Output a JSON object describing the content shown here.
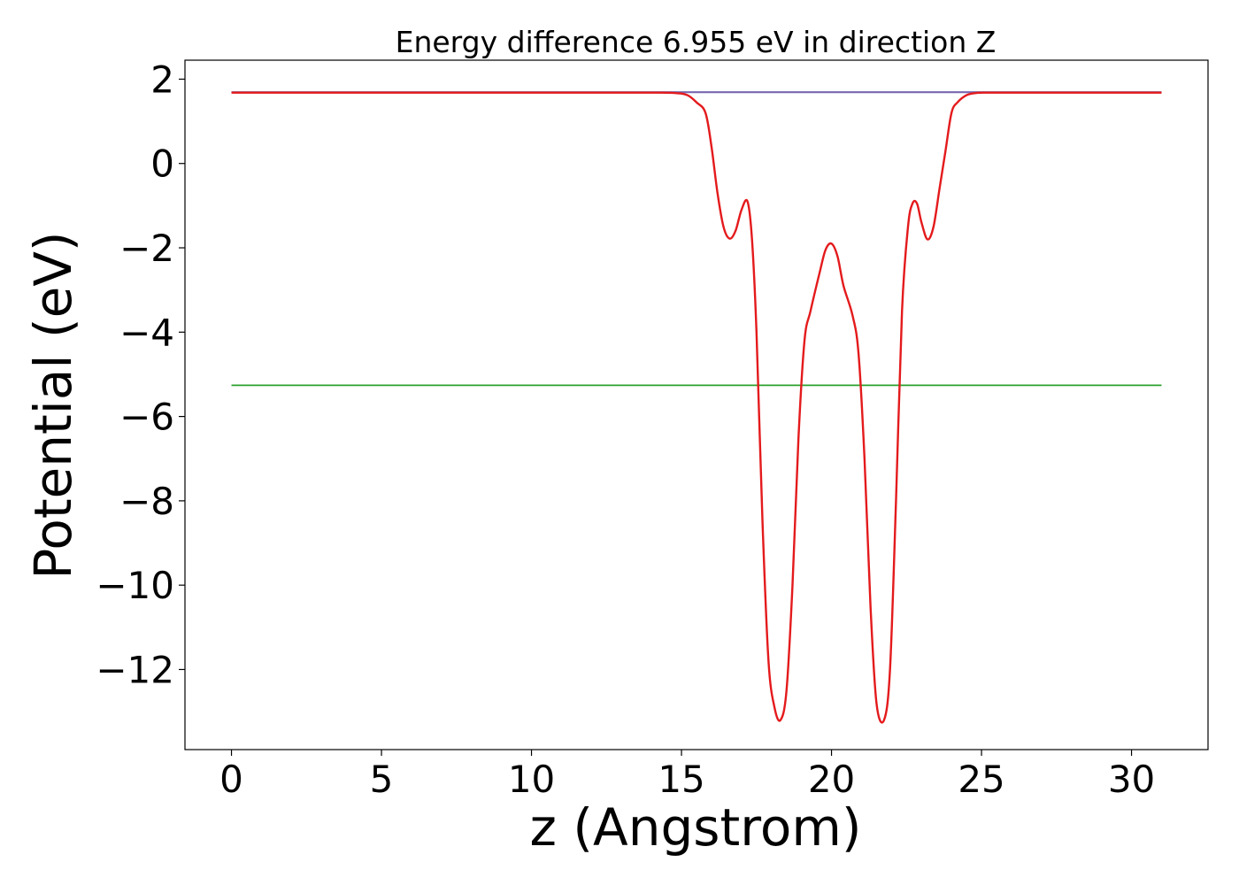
{
  "chart_data": {
    "type": "line",
    "title": "Energy difference 6.955 eV in direction Z",
    "xlabel": "z (Angstrom)",
    "ylabel": "Potential (eV)",
    "xlim": [
      -1.55,
      32.55
    ],
    "ylim": [
      -13.9,
      2.45
    ],
    "xticks": [
      0,
      5,
      10,
      15,
      20,
      25,
      30
    ],
    "yticks": [
      2,
      0,
      -2,
      -4,
      -6,
      -8,
      -10,
      -12
    ],
    "xtick_labels": [
      "0",
      "5",
      "10",
      "15",
      "20",
      "25",
      "30"
    ],
    "ytick_labels": [
      "2",
      "0",
      "−2",
      "−4",
      "−6",
      "−8",
      "−10",
      "−12"
    ],
    "grid": false,
    "legend": "none",
    "series": [
      {
        "color": "#1f77b4",
        "x": [
          0,
          31
        ],
        "y": [
          1.69,
          1.69
        ]
      },
      {
        "color": "#2ca02c",
        "x": [
          0,
          31
        ],
        "y": [
          -5.26,
          -5.26
        ]
      },
      {
        "color": "#8064b0",
        "x": [
          0,
          14.5,
          15.0,
          25.8,
          26.3,
          31
        ],
        "y": [
          1.69,
          1.69,
          1.69,
          1.69,
          1.69,
          1.69
        ]
      },
      {
        "color": "#e41a1c",
        "x": [
          0,
          5,
          10,
          14.0,
          14.8,
          15.2,
          15.5,
          15.8,
          16.0,
          16.2,
          16.4,
          16.6,
          16.8,
          17.0,
          17.2,
          17.35,
          17.5,
          17.7,
          17.9,
          18.1,
          18.3,
          18.5,
          18.7,
          18.9,
          19.1,
          19.3,
          19.6,
          19.8,
          20.0,
          20.2,
          20.4,
          20.7,
          20.9,
          21.1,
          21.3,
          21.5,
          21.75,
          21.95,
          22.15,
          22.35,
          22.55,
          22.7,
          22.85,
          23.0,
          23.2,
          23.4,
          23.6,
          23.8,
          24.0,
          24.2,
          24.5,
          24.8,
          25.2,
          26.0,
          31
        ],
        "y": [
          1.68,
          1.68,
          1.68,
          1.68,
          1.67,
          1.62,
          1.45,
          1.2,
          0.4,
          -0.7,
          -1.5,
          -1.78,
          -1.6,
          -1.1,
          -0.9,
          -1.8,
          -4.0,
          -8.5,
          -11.8,
          -12.9,
          -13.2,
          -12.5,
          -10.0,
          -6.5,
          -4.2,
          -3.5,
          -2.6,
          -2.05,
          -1.9,
          -2.2,
          -2.9,
          -3.6,
          -4.5,
          -7.0,
          -10.5,
          -12.8,
          -13.2,
          -12.0,
          -8.0,
          -3.5,
          -1.5,
          -0.95,
          -0.95,
          -1.4,
          -1.8,
          -1.5,
          -0.6,
          0.3,
          1.2,
          1.45,
          1.62,
          1.67,
          1.68,
          1.68,
          1.68
        ]
      }
    ]
  }
}
